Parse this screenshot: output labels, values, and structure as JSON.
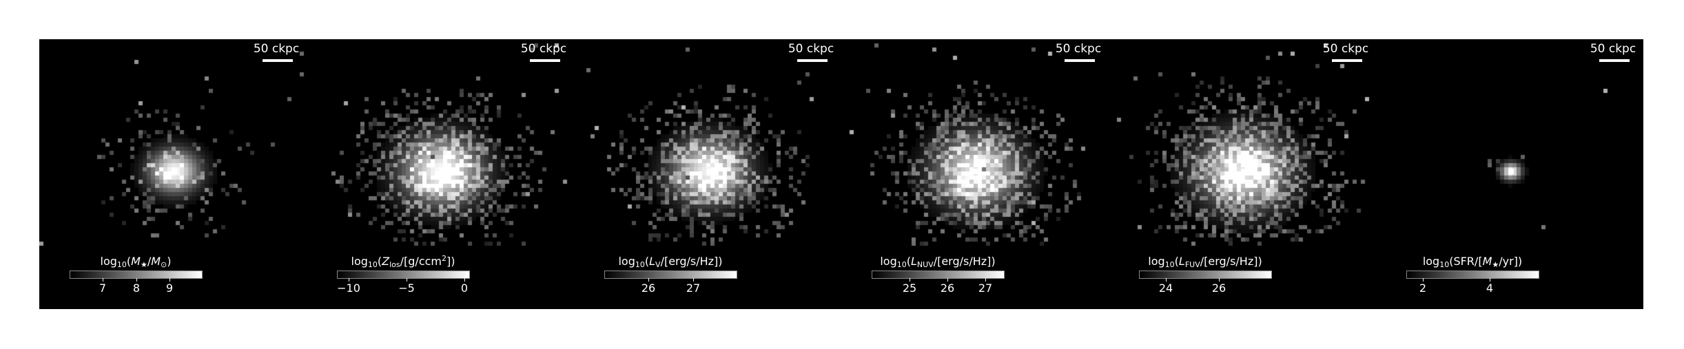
{
  "figure": {
    "panels": [
      {
        "scale_label": "50 ckpc",
        "colorbar": {
          "title_parts": [
            {
              "t": "log"
            },
            {
              "sub": "10"
            },
            {
              "t": "("
            },
            {
              "i": "M"
            },
            {
              "sub": "★"
            },
            {
              "t": "/"
            },
            {
              "i": "M"
            },
            {
              "sub": "⊙"
            },
            {
              "t": ")"
            }
          ],
          "min": 6.0,
          "max": 10.0,
          "ticks": [
            {
              "value": 7,
              "label": "7"
            },
            {
              "value": 8,
              "label": "8"
            },
            {
              "value": 9,
              "label": "9"
            }
          ]
        },
        "image": {
          "seed": 11,
          "spread": 55,
          "core_brightness": 1.0,
          "halo_density": 0.35,
          "extent": 0.8
        }
      },
      {
        "scale_label": "50 ckpc",
        "colorbar": {
          "title_parts": [
            {
              "t": "log"
            },
            {
              "sub": "10"
            },
            {
              "t": "("
            },
            {
              "i": "Z"
            },
            {
              "sub": "los"
            },
            {
              "t": "/[g/ccm"
            },
            {
              "sup": "2"
            },
            {
              "t": "])"
            }
          ],
          "min": -11.0,
          "max": 0.5,
          "ticks": [
            {
              "value": -10,
              "label": "−10"
            },
            {
              "value": -5,
              "label": "−5"
            },
            {
              "value": 0,
              "label": "0"
            }
          ]
        },
        "image": {
          "seed": 23,
          "spread": 85,
          "core_brightness": 1.0,
          "halo_density": 0.75,
          "extent": 1.0
        }
      },
      {
        "scale_label": "50 ckpc",
        "colorbar": {
          "title_parts": [
            {
              "t": "log"
            },
            {
              "sub": "10"
            },
            {
              "t": "("
            },
            {
              "i": "L"
            },
            {
              "sub": "V"
            },
            {
              "t": "/[erg/s/Hz])"
            }
          ],
          "min": 25.0,
          "max": 28.0,
          "ticks": [
            {
              "value": 26,
              "label": "26"
            },
            {
              "value": 27,
              "label": "27"
            }
          ]
        },
        "image": {
          "seed": 37,
          "spread": 80,
          "core_brightness": 0.95,
          "halo_density": 0.7,
          "extent": 1.0
        }
      },
      {
        "scale_label": "50 ckpc",
        "colorbar": {
          "title_parts": [
            {
              "t": "log"
            },
            {
              "sub": "10"
            },
            {
              "t": "("
            },
            {
              "i": "L"
            },
            {
              "sub": "NUV"
            },
            {
              "t": "/[erg/s/Hz])"
            }
          ],
          "min": 24.0,
          "max": 27.5,
          "ticks": [
            {
              "value": 25,
              "label": "25"
            },
            {
              "value": 26,
              "label": "26"
            },
            {
              "value": 27,
              "label": "27"
            }
          ]
        },
        "image": {
          "seed": 41,
          "spread": 90,
          "core_brightness": 0.9,
          "halo_density": 0.8,
          "extent": 1.05
        }
      },
      {
        "scale_label": "50 ckpc",
        "colorbar": {
          "title_parts": [
            {
              "t": "log"
            },
            {
              "sub": "10"
            },
            {
              "t": "("
            },
            {
              "i": "L"
            },
            {
              "sub": "FUV"
            },
            {
              "t": "/[erg/s/Hz])"
            }
          ],
          "min": 23.0,
          "max": 28.0,
          "ticks": [
            {
              "value": 24,
              "label": "24"
            },
            {
              "value": 26,
              "label": "26"
            }
          ]
        },
        "image": {
          "seed": 53,
          "spread": 95,
          "core_brightness": 0.9,
          "halo_density": 0.85,
          "extent": 1.1
        }
      },
      {
        "scale_label": "50 ckpc",
        "colorbar": {
          "title_parts": [
            {
              "t": "log"
            },
            {
              "sub": "10"
            },
            {
              "t": "(SFR/["
            },
            {
              "i": "M"
            },
            {
              "sub": "★"
            },
            {
              "t": "/yr])"
            }
          ],
          "min": 1.5,
          "max": 5.5,
          "ticks": [
            {
              "value": 2,
              "label": "2"
            },
            {
              "value": 4,
              "label": "4"
            }
          ]
        },
        "image": {
          "seed": 67,
          "spread": 22,
          "core_brightness": 1.0,
          "halo_density": 0.08,
          "extent": 0.3
        }
      }
    ]
  }
}
